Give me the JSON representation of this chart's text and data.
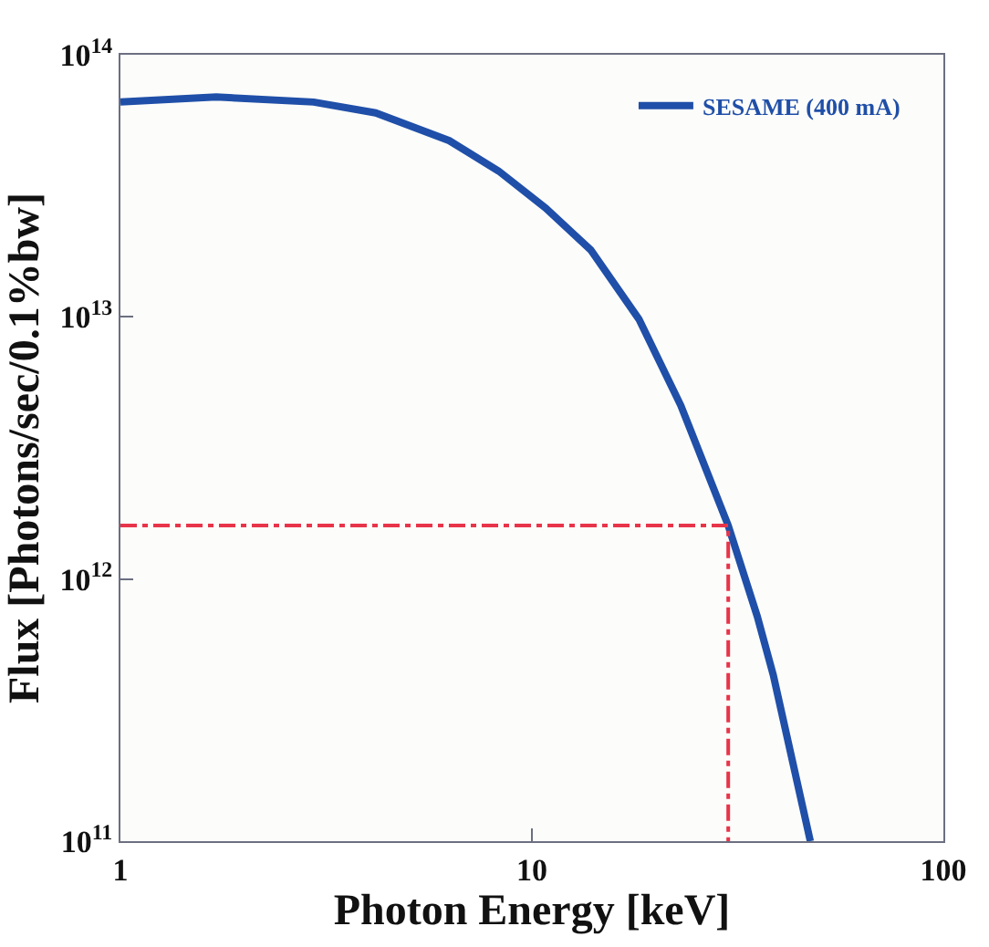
{
  "chart_data": {
    "type": "line",
    "xlabel": "Photon Energy [keV]",
    "ylabel": "Flux [Photons/sec/0.1%bw]",
    "log": "xy",
    "xlim": [
      1,
      100
    ],
    "xticks": [
      1,
      10,
      100
    ],
    "ylim": [
      100000000000.0,
      100000000000000.0
    ],
    "yticks": [
      {
        "value": 100000000000.0,
        "label": "10$^{11}$"
      },
      {
        "value": 1000000000000.0,
        "label": "10$^{12}$"
      },
      {
        "value": 10000000000000.0,
        "label": "10$^{13}$"
      },
      {
        "value": 100000000000000.0,
        "label": "10$^{14}$"
      }
    ],
    "grid": false,
    "legend": "top right",
    "series": [
      {
        "name": "SESAME (400 mA)",
        "color": "#1f4fa8",
        "line_style": "solid",
        "x": [
          1,
          1.71,
          2.95,
          4.17,
          6.3,
          8.3,
          10.8,
          13.9,
          18.2,
          23,
          30,
          35.3,
          38.6,
          47.5
        ],
        "values": [
          66000000000000.0,
          69000000000000.0,
          66000000000000.0,
          60000000000000.0,
          47000000000000.0,
          36000000000000.0,
          26000000000000.0,
          18000000000000.0,
          9800000000000.0,
          4600000000000.0,
          1600000000000.0,
          720000000000.0,
          430000000000.0,
          100000000000.0
        ]
      },
      {
        "color": "#e8344a",
        "line_style": "dashed",
        "x": [
          1,
          30,
          30
        ],
        "values": [
          1600000000000.0,
          1600000000000.0,
          100000000000.0
        ]
      }
    ]
  }
}
